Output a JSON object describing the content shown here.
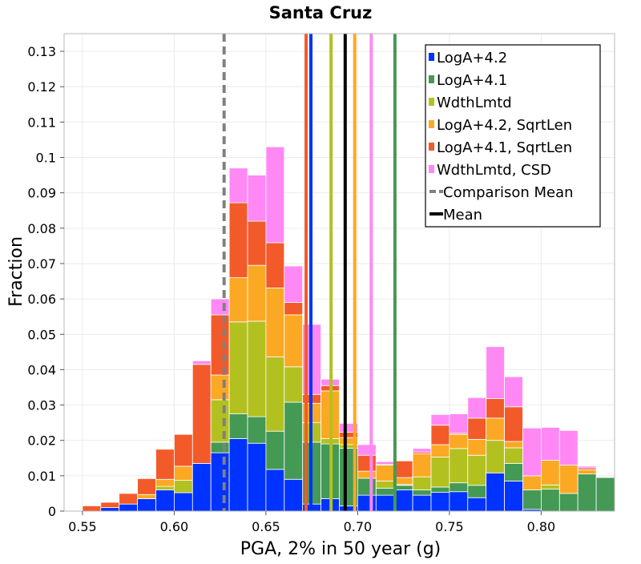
{
  "chart_data": {
    "type": "bar",
    "stacked": true,
    "title": "Santa Cruz",
    "xlabel": "PGA, 2% in 50 year (g)",
    "ylabel": "Fraction",
    "xlim": [
      0.54,
      0.84
    ],
    "ylim": [
      0,
      0.135
    ],
    "bin_width": 0.01,
    "grid": true,
    "legend_position": "top-right",
    "xticks": [
      "0.55",
      "0.60",
      "0.65",
      "0.70",
      "0.75",
      "0.80"
    ],
    "yticks": [
      "0",
      "0.01",
      "0.02",
      "0.03",
      "0.04",
      "0.05",
      "0.06",
      "0.07",
      "0.08",
      "0.09",
      "0.1",
      "0.11",
      "0.12",
      "0.13"
    ],
    "bin_starts": [
      0.54,
      0.55,
      0.56,
      0.57,
      0.58,
      0.59,
      0.6,
      0.61,
      0.62,
      0.63,
      0.64,
      0.65,
      0.66,
      0.67,
      0.68,
      0.69,
      0.7,
      0.71,
      0.72,
      0.73,
      0.74,
      0.75,
      0.76,
      0.77,
      0.78,
      0.79,
      0.8,
      0.81,
      0.82,
      0.83
    ],
    "series": [
      {
        "name": "LogA+4.2",
        "color": "#0033ff",
        "values": [
          0,
          0,
          0.001,
          0.002,
          0.0035,
          0.006,
          0.0052,
          0.0135,
          0.0165,
          0.0205,
          0.0192,
          0.0118,
          0.009,
          0.002,
          0.0035,
          0.0015,
          0.0045,
          0.0045,
          0.006,
          0.0045,
          0.0053,
          0.0055,
          0.0038,
          0.0108,
          0.0085,
          0.0005,
          0,
          0,
          0,
          0
        ]
      },
      {
        "name": "LogA+4.1",
        "color": "#449955",
        "values": [
          0,
          0,
          0,
          0,
          0,
          0,
          0,
          0,
          0.003,
          0.007,
          0.0075,
          0.0108,
          0.0218,
          0.0175,
          0.0155,
          0.0163,
          0.0048,
          0.002,
          0.0013,
          0.0015,
          0.0015,
          0.0025,
          0.0035,
          0,
          0.005,
          0.0055,
          0.0062,
          0.005,
          0.0105,
          0.0095
        ]
      },
      {
        "name": "WdthLmtd",
        "color": "#b3c120",
        "values": [
          0,
          0,
          0,
          0,
          0,
          0.001,
          0.0035,
          0,
          0.012,
          0.026,
          0.027,
          0.021,
          0.01,
          0.0055,
          0.0015,
          0.001,
          0,
          0.002,
          0.0002,
          0.0037,
          0.0085,
          0.0097,
          0.0085,
          0.0092,
          0.0044,
          0,
          0.0012,
          0,
          0,
          0
        ]
      },
      {
        "name": "LogA+4.2, SqrtLen",
        "color": "#fba924",
        "values": [
          0,
          0,
          0,
          0,
          0.0012,
          0.002,
          0.004,
          0,
          0.007,
          0.0125,
          0.0158,
          0.0195,
          0.0147,
          0.0055,
          0.0135,
          0.002,
          0.002,
          0.0045,
          0.002,
          0.0065,
          0.0035,
          0.004,
          0.0045,
          0.0063,
          0.0018,
          0.004,
          0.007,
          0.008,
          0.0012,
          0
        ]
      },
      {
        "name": "LogA+4.1, SqrtLen",
        "color": "#f35a2a",
        "values": [
          0,
          0.0015,
          0.0015,
          0.003,
          0.0045,
          0.0085,
          0.009,
          0.028,
          0.017,
          0.0212,
          0.0125,
          0.0128,
          0.0035,
          0.0025,
          0.0015,
          0.0015,
          0.0045,
          0.0002,
          0.0047,
          0.0005,
          0.0055,
          0.0003,
          0.006,
          0.0055,
          0.0098,
          0,
          0,
          0,
          0.0005,
          0
        ]
      },
      {
        "name": "WdthLmtd, CSD",
        "color": "#ff88f5",
        "values": [
          0,
          0,
          0,
          0,
          0,
          0,
          0,
          0.001,
          0.0045,
          0.0098,
          0.013,
          0.0271,
          0.0103,
          0.0198,
          0.0018,
          0.0025,
          0.003,
          0.0008,
          0,
          0.001,
          0.003,
          0.0055,
          0.0058,
          0.0147,
          0.0085,
          0.0135,
          0.0093,
          0.0098,
          0.0005,
          0
        ]
      }
    ],
    "vlines": [
      {
        "name": "LogA+4.2",
        "x": 0.6745,
        "color": "#0033ff",
        "style": "solid"
      },
      {
        "name": "LogA+4.1",
        "x": 0.7203,
        "color": "#449955",
        "style": "solid"
      },
      {
        "name": "WdthLmtd",
        "x": 0.6855,
        "color": "#b3c120",
        "style": "solid"
      },
      {
        "name": "LogA+4.2, SqrtLen",
        "x": 0.6984,
        "color": "#fba924",
        "style": "solid"
      },
      {
        "name": "LogA+4.1, SqrtLen",
        "x": 0.6719,
        "color": "#f35a2a",
        "style": "solid"
      },
      {
        "name": "WdthLmtd, CSD",
        "x": 0.7074,
        "color": "#ff88f5",
        "style": "solid"
      },
      {
        "name": "Comparison Mean",
        "x": 0.6272,
        "color": "#808080",
        "style": "dashed"
      },
      {
        "name": "Mean",
        "x": 0.6932,
        "color": "#000000",
        "style": "solid"
      }
    ],
    "legend": [
      {
        "label": "LogA+4.2",
        "color": "#0033ff",
        "kind": "patch"
      },
      {
        "label": "LogA+4.1",
        "color": "#449955",
        "kind": "patch"
      },
      {
        "label": "WdthLmtd",
        "color": "#b3c120",
        "kind": "patch"
      },
      {
        "label": "LogA+4.2, SqrtLen",
        "color": "#fba924",
        "kind": "patch"
      },
      {
        "label": "LogA+4.1, SqrtLen",
        "color": "#f35a2a",
        "kind": "patch"
      },
      {
        "label": "WdthLmtd, CSD",
        "color": "#ff88f5",
        "kind": "patch"
      },
      {
        "label": "Comparison Mean",
        "color": "#808080",
        "kind": "dashed"
      },
      {
        "label": "Mean",
        "color": "#000000",
        "kind": "line"
      }
    ]
  }
}
